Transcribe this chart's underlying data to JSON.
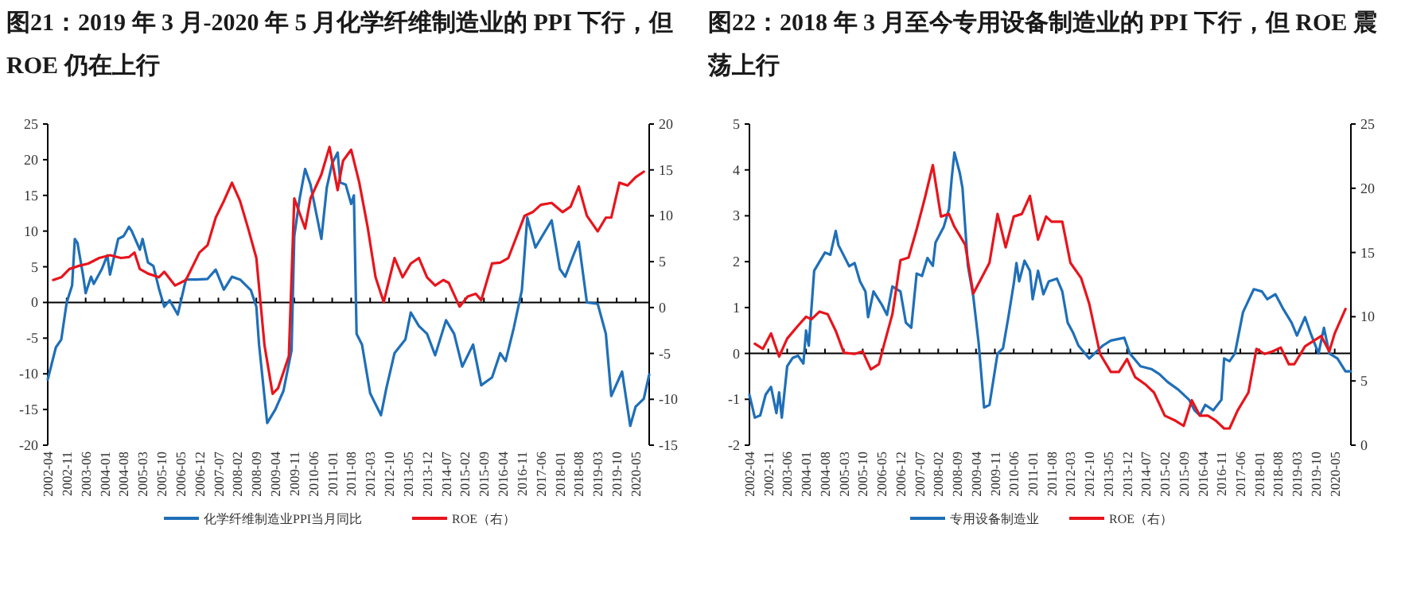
{
  "chart_data": [
    {
      "type": "line",
      "title": "图21：2019 年 3 月-2020 年 5 月化学纤维制造业的 PPI 下行，但 ROE 仍在上行",
      "xlim": [
        "2002-04",
        "2020-10"
      ],
      "xticks": [
        "2002-04",
        "2002-11",
        "2003-06",
        "2004-01",
        "2004-08",
        "2005-03",
        "2005-10",
        "2006-05",
        "2006-12",
        "2007-07",
        "2008-02",
        "2008-09",
        "2009-04",
        "2009-11",
        "2010-06",
        "2011-01",
        "2011-08",
        "2012-03",
        "2012-10",
        "2013-05",
        "2013-12",
        "2014-07",
        "2015-02",
        "2015-09",
        "2016-04",
        "2016-11",
        "2017-06",
        "2018-01",
        "2018-08",
        "2019-03",
        "2019-10",
        "2020-05"
      ],
      "ylim": [
        -20,
        25
      ],
      "yticks": [
        -20,
        -15,
        -10,
        -5,
        0,
        5,
        10,
        15,
        20,
        25
      ],
      "y2lim": [
        -15,
        20
      ],
      "y2ticks": [
        -15,
        -10,
        -5,
        0,
        5,
        10,
        15,
        20
      ],
      "legend": "bottom",
      "series": [
        {
          "name": "化学纤维制造业PPI当月同比",
          "color": "#1f6fb8",
          "x": [
            "2002-04",
            "2002-07",
            "2002-09",
            "2002-11",
            "2003-01",
            "2003-02",
            "2003-03",
            "2003-05",
            "2003-06",
            "2003-08",
            "2003-09",
            "2003-12",
            "2004-02",
            "2004-03",
            "2004-06",
            "2004-08",
            "2004-10",
            "2004-11",
            "2005-02",
            "2005-03",
            "2005-05",
            "2005-07",
            "2005-09",
            "2005-11",
            "2006-01",
            "2006-04",
            "2006-07",
            "2006-11",
            "2007-03",
            "2007-06",
            "2007-09",
            "2007-12",
            "2008-03",
            "2008-07",
            "2008-09",
            "2008-10",
            "2009-01",
            "2009-04",
            "2009-07",
            "2009-10",
            "2009-11",
            "2010-01",
            "2010-03",
            "2010-05",
            "2010-09",
            "2010-11",
            "2011-01",
            "2011-03",
            "2011-04",
            "2011-06",
            "2011-08",
            "2011-09",
            "2011-10",
            "2011-12",
            "2012-03",
            "2012-04",
            "2012-07",
            "2012-09",
            "2012-12",
            "2013-04",
            "2013-06",
            "2013-09",
            "2013-12",
            "2014-03",
            "2014-07",
            "2014-10",
            "2015-01",
            "2015-05",
            "2015-08",
            "2015-12",
            "2016-03",
            "2016-05",
            "2016-08",
            "2016-11",
            "2017-01",
            "2017-04",
            "2017-07",
            "2017-10",
            "2018-01",
            "2018-03",
            "2018-06",
            "2018-08",
            "2018-11",
            "2019-03",
            "2019-06",
            "2019-08",
            "2019-12",
            "2020-03",
            "2020-05",
            "2020-08",
            "2020-10"
          ],
          "values": [
            -10.8,
            -6.3,
            -5.2,
            0,
            2.4,
            8.9,
            8.3,
            3.9,
            1.3,
            3.6,
            2.6,
            4.7,
            6.6,
            3.9,
            8.9,
            9.3,
            10.6,
            10.0,
            7.4,
            8.9,
            5.6,
            5.1,
            2.0,
            -0.6,
            0.3,
            -1.7,
            3.2,
            3.2,
            3.3,
            4.6,
            1.8,
            3.6,
            3.2,
            1.7,
            -0.6,
            -5.9,
            -16.9,
            -15.0,
            -12.4,
            -6.7,
            9.3,
            14.6,
            18.7,
            16.5,
            8.9,
            16.1,
            19.5,
            21.0,
            16.8,
            16.5,
            13.8,
            15.0,
            -4.4,
            -5.9,
            -12.7,
            -13.5,
            -15.8,
            -12.0,
            -7.1,
            -5.2,
            -1.4,
            -3.3,
            -4.4,
            -7.4,
            -2.5,
            -4.4,
            -9.0,
            -5.9,
            -11.6,
            -10.5,
            -7.1,
            -8.2,
            -3.6,
            1.7,
            11.9,
            7.7,
            9.6,
            11.5,
            4.7,
            3.6,
            6.6,
            8.5,
            0,
            -0.2,
            -4.4,
            -13.1,
            -9.7,
            -17.3,
            -14.6,
            -13.5,
            -10.1
          ]
        },
        {
          "name": "ROE（右）",
          "color": "#e8141c",
          "axis": "y2",
          "x": [
            "2002-06",
            "2002-09",
            "2002-12",
            "2003-03",
            "2003-07",
            "2003-11",
            "2004-03",
            "2004-07",
            "2004-10",
            "2004-12",
            "2005-02",
            "2005-05",
            "2005-09",
            "2005-11",
            "2006-03",
            "2006-07",
            "2006-12",
            "2007-03",
            "2007-06",
            "2007-09",
            "2007-12",
            "2008-03",
            "2008-06",
            "2008-09",
            "2008-12",
            "2009-03",
            "2009-05",
            "2009-09",
            "2009-11",
            "2010-03",
            "2010-05",
            "2010-09",
            "2010-12",
            "2011-03",
            "2011-05",
            "2011-08",
            "2011-11",
            "2012-02",
            "2012-05",
            "2012-08",
            "2012-12",
            "2013-03",
            "2013-06",
            "2013-09",
            "2013-12",
            "2014-03",
            "2014-06",
            "2014-08",
            "2014-12",
            "2015-03",
            "2015-06",
            "2015-08",
            "2015-12",
            "2016-03",
            "2016-06",
            "2016-09",
            "2016-12",
            "2017-03",
            "2017-06",
            "2017-10",
            "2018-02",
            "2018-05",
            "2018-08",
            "2018-11",
            "2019-03",
            "2019-06",
            "2019-08",
            "2019-11",
            "2020-02",
            "2020-05",
            "2020-08"
          ],
          "values": [
            3.0,
            3.3,
            4.2,
            4.5,
            4.8,
            5.4,
            5.7,
            5.4,
            5.5,
            6.0,
            4.2,
            3.7,
            3.3,
            3.9,
            2.4,
            3.0,
            6.0,
            6.8,
            9.8,
            11.6,
            13.6,
            11.6,
            8.6,
            5.4,
            -4.1,
            -9.4,
            -8.8,
            -5.3,
            11.9,
            8.6,
            11.9,
            14.5,
            17.5,
            12.8,
            16.0,
            17.2,
            13.6,
            8.9,
            3.3,
            0.6,
            5.4,
            3.3,
            4.8,
            5.4,
            3.3,
            2.4,
            3.0,
            2.7,
            0.1,
            1.2,
            1.5,
            0.8,
            4.8,
            4.9,
            5.4,
            7.7,
            10.0,
            10.4,
            11.2,
            11.4,
            10.4,
            11.0,
            13.2,
            10.0,
            8.3,
            9.8,
            9.8,
            13.6,
            13.3,
            14.2,
            14.8
          ]
        }
      ]
    },
    {
      "type": "line",
      "title": "图22：2018 年 3 月至今专用设备制造业的 PPI 下行，但 ROE 震荡上行",
      "xlim": [
        "2002-04",
        "2020-11"
      ],
      "xticks": [
        "2002-04",
        "2002-11",
        "2003-06",
        "2004-01",
        "2004-08",
        "2005-03",
        "2005-10",
        "2006-05",
        "2006-12",
        "2007-07",
        "2008-02",
        "2008-09",
        "2009-04",
        "2009-11",
        "2010-06",
        "2011-01",
        "2011-08",
        "2012-03",
        "2012-10",
        "2013-05",
        "2013-12",
        "2014-07",
        "2015-02",
        "2015-09",
        "2016-04",
        "2016-11",
        "2017-06",
        "2018-01",
        "2018-08",
        "2019-03",
        "2019-10",
        "2020-05"
      ],
      "ylim": [
        -2,
        5
      ],
      "yticks": [
        -2,
        -1,
        0,
        1,
        2,
        3,
        4,
        5
      ],
      "y2lim": [
        0,
        25
      ],
      "y2ticks": [
        0,
        5,
        10,
        15,
        20,
        25
      ],
      "legend": "bottom",
      "series": [
        {
          "name": "专用设备制造业",
          "color": "#1f6fb8",
          "x": [
            "2002-04",
            "2002-06",
            "2002-08",
            "2002-10",
            "2002-12",
            "2003-02",
            "2003-03",
            "2003-04",
            "2003-06",
            "2003-08",
            "2003-10",
            "2003-12",
            "2004-01",
            "2004-02",
            "2004-04",
            "2004-06",
            "2004-08",
            "2004-10",
            "2004-12",
            "2005-01",
            "2005-03",
            "2005-05",
            "2005-07",
            "2005-09",
            "2005-11",
            "2005-12",
            "2006-02",
            "2006-05",
            "2006-07",
            "2006-09",
            "2006-12",
            "2007-02",
            "2007-04",
            "2007-06",
            "2007-08",
            "2007-10",
            "2007-12",
            "2008-01",
            "2008-04",
            "2008-06",
            "2008-07",
            "2008-08",
            "2008-10",
            "2008-11",
            "2009-01",
            "2009-03",
            "2009-05",
            "2009-07",
            "2009-09",
            "2009-12",
            "2010-02",
            "2010-04",
            "2010-06",
            "2010-07",
            "2010-08",
            "2010-10",
            "2010-12",
            "2011-01",
            "2011-03",
            "2011-05",
            "2011-07",
            "2011-10",
            "2011-12",
            "2012-02",
            "2012-04",
            "2012-06",
            "2012-10",
            "2013-01",
            "2013-03",
            "2013-06",
            "2013-11",
            "2014-01",
            "2014-05",
            "2014-09",
            "2014-12",
            "2015-03",
            "2015-07",
            "2015-11",
            "2016-01",
            "2016-03",
            "2016-05",
            "2016-08",
            "2016-11",
            "2016-12",
            "2017-02",
            "2017-04",
            "2017-07",
            "2017-11",
            "2018-02",
            "2018-04",
            "2018-07",
            "2018-10",
            "2019-01",
            "2019-03",
            "2019-06",
            "2019-08",
            "2019-11",
            "2020-01",
            "2020-03",
            "2020-06",
            "2020-09",
            "2020-11"
          ],
          "values": [
            -0.9,
            -1.4,
            -1.35,
            -0.9,
            -0.73,
            -1.3,
            -0.85,
            -1.4,
            -0.28,
            -0.1,
            -0.05,
            -0.22,
            0.5,
            0.17,
            1.8,
            2.0,
            2.2,
            2.15,
            2.67,
            2.36,
            2.13,
            1.9,
            1.97,
            1.57,
            1.35,
            0.79,
            1.35,
            1.07,
            0.84,
            1.46,
            1.35,
            0.67,
            0.56,
            1.74,
            1.69,
            2.08,
            1.91,
            2.42,
            2.75,
            3.15,
            3.82,
            4.38,
            3.93,
            3.6,
            1.91,
            1.24,
            0.22,
            -1.18,
            -1.12,
            0,
            0.11,
            0.79,
            1.52,
            1.97,
            1.57,
            2.02,
            1.8,
            1.18,
            1.8,
            1.29,
            1.57,
            1.63,
            1.35,
            0.67,
            0.45,
            0.17,
            -0.11,
            0.06,
            0.17,
            0.28,
            0.34,
            0,
            -0.28,
            -0.34,
            -0.45,
            -0.62,
            -0.79,
            -1.01,
            -1.24,
            -1.35,
            -1.12,
            -1.24,
            -1.01,
            -0.11,
            -0.17,
            0,
            0.9,
            1.4,
            1.35,
            1.18,
            1.29,
            0.96,
            0.67,
            0.39,
            0.79,
            0.45,
            0,
            0.56,
            0,
            -0.11,
            -0.39,
            -0.39
          ]
        },
        {
          "name": "ROE（右）",
          "color": "#e8141c",
          "axis": "y2",
          "x": [
            "2002-06",
            "2002-09",
            "2002-12",
            "2003-03",
            "2003-06",
            "2003-10",
            "2004-01",
            "2004-03",
            "2004-06",
            "2004-09",
            "2004-12",
            "2005-03",
            "2005-07",
            "2005-10",
            "2006-01",
            "2006-04",
            "2006-06",
            "2006-09",
            "2006-12",
            "2007-03",
            "2007-06",
            "2007-09",
            "2007-12",
            "2008-03",
            "2008-06",
            "2008-08",
            "2008-12",
            "2009-03",
            "2009-07",
            "2009-09",
            "2009-12",
            "2010-03",
            "2010-06",
            "2010-09",
            "2010-12",
            "2011-03",
            "2011-06",
            "2011-08",
            "2011-12",
            "2012-03",
            "2012-07",
            "2012-10",
            "2013-02",
            "2013-06",
            "2013-09",
            "2013-12",
            "2014-03",
            "2014-07",
            "2014-10",
            "2015-02",
            "2015-06",
            "2015-09",
            "2015-12",
            "2016-03",
            "2016-06",
            "2016-09",
            "2016-12",
            "2017-02",
            "2017-05",
            "2017-09",
            "2017-12",
            "2018-03",
            "2018-06",
            "2018-09",
            "2018-12",
            "2019-02",
            "2019-06",
            "2019-09",
            "2019-12",
            "2020-03",
            "2020-05",
            "2020-09"
          ],
          "values": [
            7.9,
            7.5,
            8.7,
            6.9,
            8.3,
            9.3,
            10.0,
            9.8,
            10.4,
            10.2,
            8.9,
            7.2,
            7.1,
            7.3,
            5.9,
            6.3,
            7.9,
            10.2,
            14.4,
            14.6,
            16.8,
            19.2,
            21.8,
            17.8,
            18.0,
            17.0,
            15.6,
            11.8,
            13.4,
            14.2,
            18.0,
            15.4,
            17.8,
            18.0,
            19.4,
            16.0,
            17.8,
            17.4,
            17.4,
            14.2,
            13.0,
            11.0,
            7.1,
            5.7,
            5.7,
            6.7,
            5.3,
            4.7,
            4.1,
            2.3,
            1.9,
            1.5,
            3.5,
            2.3,
            2.3,
            1.9,
            1.3,
            1.3,
            2.7,
            4.1,
            7.5,
            7.1,
            7.3,
            7.6,
            6.3,
            6.3,
            7.7,
            8.1,
            8.5,
            7.3,
            8.7,
            10.6
          ]
        }
      ]
    }
  ]
}
